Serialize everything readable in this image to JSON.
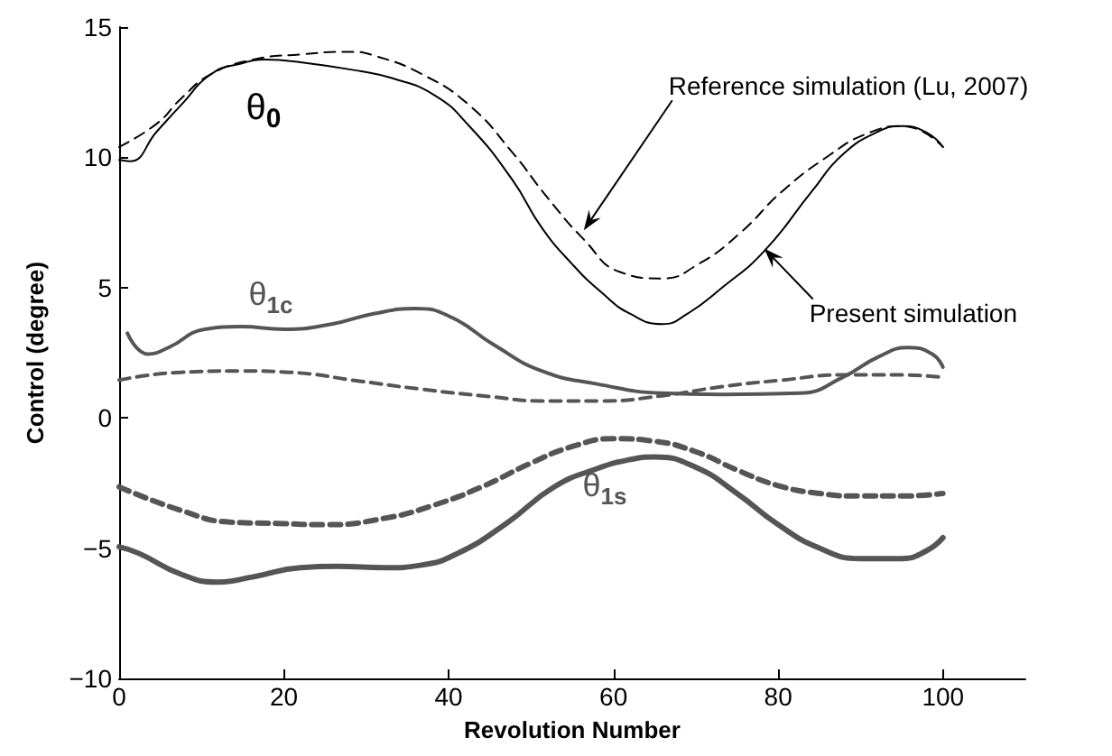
{
  "chart_data": {
    "type": "line",
    "xlabel": "Revolution Number",
    "ylabel": "Control (degree)",
    "xlim": [
      0,
      110
    ],
    "xticks": [
      0,
      20,
      40,
      60,
      80,
      100
    ],
    "ylim": [
      -10,
      15
    ],
    "yticks": [
      -10,
      -5,
      0,
      5,
      10,
      15
    ],
    "marker": "none",
    "series": [
      {
        "color": "#000000",
        "line_style": "solid",
        "x": [
          0,
          1.3,
          4.6,
          7.5,
          11.2,
          14.8,
          17.7,
          22,
          29.4,
          33,
          38.2,
          42.5,
          47.7,
          51.3,
          55,
          58.6,
          62,
          65.9,
          69,
          73.2,
          78.3,
          84.1,
          87.8,
          92.2,
          95.1,
          98,
          100
        ],
        "values": [
          9.9,
          9.85,
          11.0,
          12.0,
          13.2,
          13.6,
          13.75,
          13.65,
          13.3,
          13.05,
          12.4,
          11.2,
          9.15,
          7.3,
          5.9,
          4.8,
          4.0,
          3.6,
          4.0,
          5.0,
          6.4,
          8.7,
          10.1,
          11.0,
          11.2,
          10.95,
          10.4
        ]
      },
      {
        "color": "#000000",
        "line_style": "dashed",
        "x": [
          0,
          4.6,
          7.5,
          11.2,
          16.3,
          22,
          28,
          31,
          36.7,
          42.5,
          47.7,
          52,
          56.4,
          60.8,
          65.9,
          70.3,
          75.4,
          80.5,
          86.3,
          90.7,
          95.1,
          100
        ],
        "values": [
          10.4,
          11.3,
          12.25,
          13.2,
          13.75,
          13.95,
          14.05,
          13.9,
          13.2,
          12.0,
          10.2,
          8.45,
          6.85,
          5.6,
          5.35,
          5.9,
          7.1,
          8.7,
          10.1,
          10.9,
          11.2,
          10.4
        ]
      },
      {
        "color": "#555555",
        "line_style": "solid",
        "x": [
          1,
          3.5,
          6,
          10.4,
          14.8,
          20,
          25.8,
          30.9,
          36,
          40.4,
          45.5,
          51.3,
          58,
          65.9,
          73.2,
          82.7,
          87.8,
          92.2,
          95.8,
          98.7,
          100
        ],
        "values": [
          3.25,
          2.45,
          2.7,
          3.4,
          3.5,
          3.4,
          3.6,
          4.0,
          4.2,
          3.85,
          2.8,
          1.8,
          1.3,
          0.95,
          0.9,
          0.95,
          1.55,
          2.35,
          2.7,
          2.45,
          1.95
        ]
      },
      {
        "color": "#555555",
        "line_style": "dashed",
        "x": [
          0,
          7.5,
          14.8,
          20.6,
          29.4,
          36.7,
          45.5,
          51.3,
          58.6,
          65.9,
          73.2,
          80.5,
          87.8,
          95,
          100
        ],
        "values": [
          1.45,
          1.75,
          1.8,
          1.75,
          1.4,
          1.1,
          0.8,
          0.65,
          0.65,
          0.85,
          1.2,
          1.45,
          1.65,
          1.65,
          1.55
        ]
      },
      {
        "color": "#555555",
        "line_style": "solid",
        "x": [
          0,
          2.4,
          7.5,
          11.9,
          16.3,
          22,
          26.5,
          32.3,
          36.7,
          41.1,
          47,
          52.8,
          58,
          62,
          65,
          70,
          75,
          80,
          85,
          90,
          95,
          98,
          100
        ],
        "values": [
          -4.95,
          -5.2,
          -6.0,
          -6.3,
          -6.1,
          -5.75,
          -5.7,
          -5.75,
          -5.65,
          -5.2,
          -4.05,
          -2.65,
          -1.95,
          -1.6,
          -1.5,
          -1.9,
          -2.9,
          -4.1,
          -5.0,
          -5.4,
          -5.4,
          -5.1,
          -4.6
        ]
      },
      {
        "color": "#555555",
        "line_style": "dashed",
        "x": [
          0,
          7.5,
          13.4,
          19.2,
          25,
          32.3,
          38.2,
          44,
          49.9,
          55,
          60,
          65,
          70,
          75,
          80,
          85,
          90,
          95,
          100
        ],
        "values": [
          -2.65,
          -3.55,
          -4.0,
          -4.05,
          -4.1,
          -3.85,
          -3.35,
          -2.65,
          -1.75,
          -1.1,
          -0.8,
          -0.9,
          -1.3,
          -2.0,
          -2.6,
          -2.9,
          -3.0,
          -3.0,
          -2.9
        ]
      }
    ],
    "annotations": [
      "θ$_{0}$",
      "θ$_{1c}$",
      "θ$_{1s}$",
      {
        "text": "Reference simulation (Lu, 2007)",
        "x": 56.4,
        "y": 7.2
      },
      {
        "text": "Present simulation",
        "x": 78.3,
        "y": 6.5
      }
    ]
  }
}
